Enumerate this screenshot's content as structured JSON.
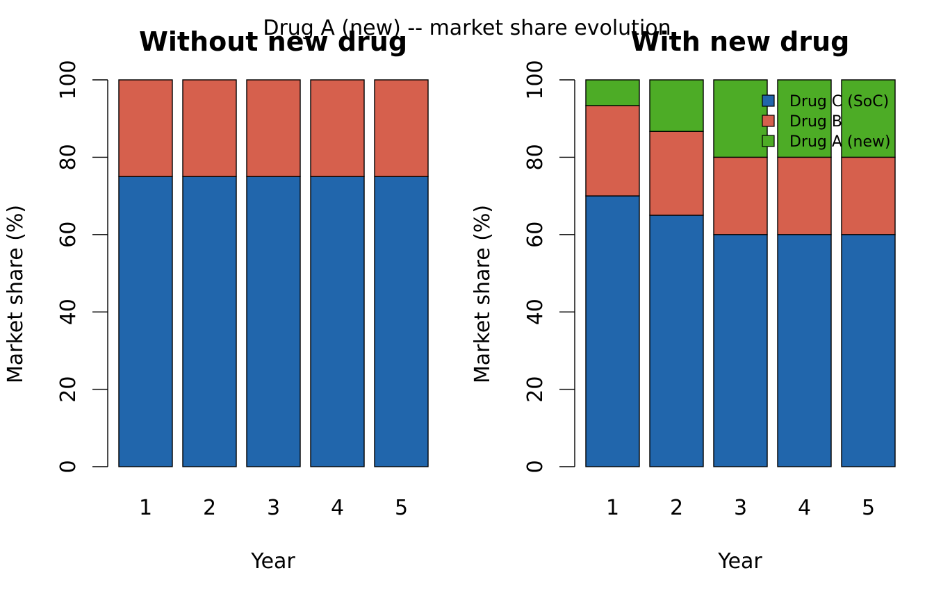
{
  "figure": {
    "suptitle": "Drug A (new) -- market share evolution"
  },
  "chart_data": [
    {
      "type": "bar",
      "stacked": true,
      "title": "Without new drug",
      "xlabel": "Year",
      "ylabel": "Market share (%)",
      "ylim": [
        0,
        100
      ],
      "yticks": [
        "0",
        "20",
        "40",
        "60",
        "80",
        "100"
      ],
      "categories": [
        "1",
        "2",
        "3",
        "4",
        "5"
      ],
      "grid": false,
      "series": [
        {
          "key": "drug-c",
          "values": [
            75,
            75,
            75,
            75,
            75
          ],
          "color": "#2166ac"
        },
        {
          "key": "drug-b",
          "values": [
            25,
            25,
            25,
            25,
            25
          ],
          "color": "#d6604d"
        }
      ]
    },
    {
      "type": "bar",
      "stacked": true,
      "title": "With new drug",
      "xlabel": "Year",
      "ylabel": "Market share (%)",
      "ylim": [
        0,
        100
      ],
      "yticks": [
        "0",
        "20",
        "40",
        "60",
        "80",
        "100"
      ],
      "categories": [
        "1",
        "2",
        "3",
        "4",
        "5"
      ],
      "grid": false,
      "legend_position": "top-right",
      "series": [
        {
          "key": "drug-c",
          "name": "Drug C (SoC)",
          "values": [
            70,
            65,
            60,
            60,
            60
          ],
          "color": "#2166ac"
        },
        {
          "key": "drug-b",
          "name": "Drug B",
          "values": [
            23.33,
            21.67,
            20,
            20,
            20
          ],
          "color": "#d6604d"
        },
        {
          "key": "drug-a",
          "name": "Drug A (new)",
          "values": [
            6.67,
            13.33,
            20,
            20,
            20
          ],
          "color": "#4dac26"
        }
      ]
    }
  ]
}
